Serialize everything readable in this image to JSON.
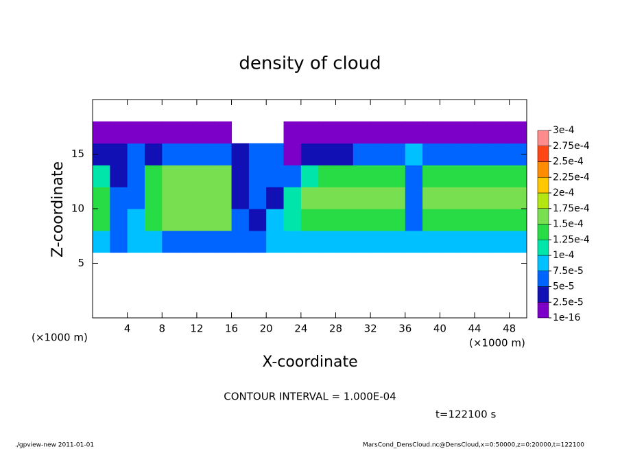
{
  "chart_data": {
    "type": "heatmap",
    "title": "density of cloud",
    "x_label": "X-coordinate",
    "y_label": "Z-coordinate",
    "x_unit_left": "(×1000 m)",
    "x_unit_right": "(×1000 m)",
    "xlim": [
      0,
      50
    ],
    "ylim": [
      0,
      20
    ],
    "xticks": [
      4,
      8,
      12,
      16,
      20,
      24,
      28,
      32,
      36,
      40,
      44,
      48
    ],
    "yticks": [
      5,
      10,
      15
    ],
    "x": [
      1,
      3,
      5,
      7,
      9,
      11,
      13,
      15,
      17,
      19,
      21,
      23,
      25,
      27,
      29,
      31,
      33,
      35,
      37,
      39,
      41,
      43,
      45,
      47,
      49
    ],
    "y": [
      1,
      3,
      5,
      7,
      9,
      11,
      13,
      15,
      17,
      19
    ],
    "z": [
      [
        null,
        null,
        null,
        null,
        null,
        null,
        null,
        null,
        null,
        null,
        null,
        null,
        null,
        null,
        null,
        null,
        null,
        null,
        null,
        null,
        null,
        null,
        null,
        null,
        null
      ],
      [
        null,
        null,
        null,
        null,
        null,
        null,
        null,
        null,
        null,
        null,
        null,
        null,
        null,
        null,
        null,
        null,
        null,
        null,
        null,
        null,
        null,
        null,
        null,
        null,
        null
      ],
      [
        null,
        null,
        null,
        null,
        null,
        null,
        null,
        null,
        null,
        null,
        null,
        null,
        null,
        null,
        null,
        null,
        null,
        null,
        null,
        null,
        null,
        null,
        null,
        null,
        null
      ],
      [
        8e-05,
        7e-05,
        8e-05,
        8e-05,
        7e-05,
        7e-05,
        7e-05,
        7e-05,
        6e-05,
        7e-05,
        8e-05,
        8e-05,
        8e-05,
        9e-05,
        9e-05,
        9e-05,
        9e-05,
        9e-05,
        8e-05,
        9e-05,
        9e-05,
        9e-05,
        9e-05,
        9e-05,
        9e-05
      ],
      [
        0.00013,
        6e-05,
        8e-05,
        0.00013,
        0.00015,
        0.00015,
        0.00015,
        0.00015,
        6e-05,
        3e-05,
        8e-05,
        0.00011,
        0.00014,
        0.00014,
        0.00014,
        0.00014,
        0.00014,
        0.00014,
        5e-05,
        0.00014,
        0.00014,
        0.00014,
        0.00014,
        0.00014,
        0.00014
      ],
      [
        0.00014,
        5e-05,
        7e-05,
        0.00014,
        0.00016,
        0.00016,
        0.00016,
        0.00016,
        4e-05,
        5e-05,
        3e-05,
        0.00012,
        0.00015,
        0.00015,
        0.00015,
        0.00015,
        0.00015,
        0.00015,
        6e-05,
        0.00015,
        0.00015,
        0.00015,
        0.00015,
        0.00015,
        0.00015
      ],
      [
        0.00011,
        4e-05,
        6e-05,
        0.00013,
        0.00015,
        0.00015,
        0.00015,
        0.00015,
        4e-05,
        6e-05,
        7e-05,
        7e-05,
        0.00012,
        0.00014,
        0.00014,
        0.00014,
        0.00014,
        0.00014,
        5e-05,
        0.00013,
        0.00013,
        0.00013,
        0.00013,
        0.00013,
        0.00013
      ],
      [
        4e-05,
        3e-05,
        6e-05,
        4e-05,
        7e-05,
        7e-05,
        7e-05,
        7e-05,
        3e-05,
        5e-05,
        6e-05,
        2e-05,
        3e-05,
        3e-05,
        3e-05,
        6e-05,
        6e-05,
        6e-05,
        8e-05,
        6e-05,
        6e-05,
        6e-05,
        6e-05,
        6e-05,
        6e-05
      ],
      [
        1e-05,
        1e-05,
        1e-05,
        1e-05,
        1e-05,
        1e-05,
        1e-05,
        1e-05,
        null,
        null,
        null,
        1e-05,
        1e-05,
        1e-05,
        1e-05,
        1e-05,
        1e-05,
        1e-05,
        1e-05,
        1e-05,
        1e-05,
        1e-05,
        1e-05,
        1e-05,
        1e-05
      ],
      [
        null,
        null,
        null,
        null,
        null,
        null,
        null,
        null,
        null,
        null,
        null,
        null,
        null,
        null,
        null,
        null,
        null,
        null,
        null,
        null,
        null,
        null,
        null,
        null,
        null
      ]
    ],
    "colorbar": {
      "ticks": [
        {
          "value": 1e-16,
          "label": "1e-16"
        },
        {
          "value": 2.5e-05,
          "label": "2.5e-5"
        },
        {
          "value": 5e-05,
          "label": "5e-5"
        },
        {
          "value": 7.5e-05,
          "label": "7.5e-5"
        },
        {
          "value": 0.0001,
          "label": "1e-4"
        },
        {
          "value": 0.000125,
          "label": "1.25e-4"
        },
        {
          "value": 0.00015,
          "label": "1.5e-4"
        },
        {
          "value": 0.000175,
          "label": "1.75e-4"
        },
        {
          "value": 0.0002,
          "label": "2e-4"
        },
        {
          "value": 0.000225,
          "label": "2.25e-4"
        },
        {
          "value": 0.00025,
          "label": "2.5e-4"
        },
        {
          "value": 0.000275,
          "label": "2.75e-4"
        },
        {
          "value": 0.0003,
          "label": "3e-4"
        }
      ],
      "colors": [
        "#7d00c8",
        "#1010b4",
        "#0064ff",
        "#00c0ff",
        "#00e6aa",
        "#28dc46",
        "#78e050",
        "#b4e614",
        "#ffc800",
        "#ff8c00",
        "#ff4614",
        "#ff8c8c"
      ]
    },
    "contour_interval": "CONTOUR INTERVAL = 1.000E-04",
    "time_label": "t=122100 s",
    "footer_left": "./gpview-new  2011-01-01",
    "footer_right": "MarsCond_DensCloud.nc@DensCloud,x=0:50000,z=0:20000,t=122100"
  }
}
